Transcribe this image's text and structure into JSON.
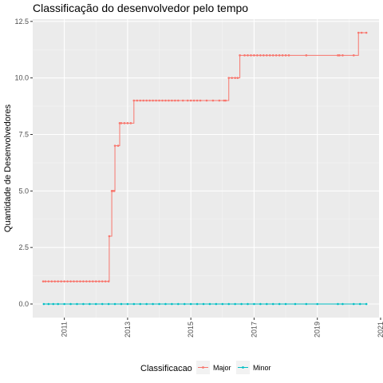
{
  "chart_data": {
    "type": "line",
    "title": "Classificação do desenvolvedor pelo tempo",
    "xlabel": "",
    "ylabel": "Quantidade de Desenvolvedores",
    "x_ticks": [
      "2011",
      "2013",
      "2015",
      "2017",
      "2019",
      "2021"
    ],
    "y_ticks": [
      "0.0",
      "2.5",
      "5.0",
      "7.5",
      "10.0",
      "12.5"
    ],
    "xlim": [
      2010.0,
      2020.95
    ],
    "ylim": [
      -0.6,
      12.6
    ],
    "grid": true,
    "legend": {
      "title": "Classificacao",
      "position": "bottom",
      "entries": [
        "Major",
        "Minor"
      ]
    },
    "colors": {
      "Major": "#F8766D",
      "Minor": "#00BFC4",
      "panel": "#EBEBEB"
    },
    "series": [
      {
        "name": "Major",
        "x": [
          2010.33,
          2010.4,
          2010.5,
          2010.6,
          2010.7,
          2010.8,
          2010.9,
          2011.0,
          2011.1,
          2011.2,
          2011.3,
          2011.4,
          2011.5,
          2011.6,
          2011.7,
          2011.8,
          2011.9,
          2012.0,
          2012.1,
          2012.2,
          2012.3,
          2012.4,
          2012.42,
          2012.5,
          2012.53,
          2012.58,
          2012.6,
          2012.7,
          2012.75,
          2012.8,
          2012.9,
          2013.0,
          2013.1,
          2013.2,
          2013.3,
          2013.4,
          2013.5,
          2013.6,
          2013.7,
          2013.8,
          2013.9,
          2014.0,
          2014.1,
          2014.2,
          2014.3,
          2014.4,
          2014.5,
          2014.6,
          2014.75,
          2014.9,
          2015.0,
          2015.1,
          2015.2,
          2015.3,
          2015.5,
          2015.7,
          2015.9,
          2016.05,
          2016.1,
          2016.2,
          2016.3,
          2016.4,
          2016.48,
          2016.55,
          2016.7,
          2016.8,
          2016.9,
          2017.0,
          2017.1,
          2017.2,
          2017.3,
          2017.4,
          2017.5,
          2017.6,
          2017.7,
          2017.8,
          2017.9,
          2018.0,
          2018.1,
          2018.65,
          2019.65,
          2019.7,
          2019.8,
          2020.15,
          2020.3,
          2020.4,
          2020.55
        ],
        "y": [
          1,
          1,
          1,
          1,
          1,
          1,
          1,
          1,
          1,
          1,
          1,
          1,
          1,
          1,
          1,
          1,
          1,
          1,
          1,
          1,
          1,
          1,
          3,
          5,
          5,
          5,
          7,
          7,
          8,
          8,
          8,
          8,
          8,
          9,
          9,
          9,
          9,
          9,
          9,
          9,
          9,
          9,
          9,
          9,
          9,
          9,
          9,
          9,
          9,
          9,
          9,
          9,
          9,
          9,
          9,
          9,
          9,
          9,
          9,
          10,
          10,
          10,
          10,
          11,
          11,
          11,
          11,
          11,
          11,
          11,
          11,
          11,
          11,
          11,
          11,
          11,
          11,
          11,
          11,
          11,
          11,
          11,
          11,
          11,
          12,
          12,
          12
        ]
      },
      {
        "name": "Minor",
        "x": [
          2010.35,
          2010.5,
          2010.65,
          2010.8,
          2011.0,
          2011.2,
          2011.4,
          2011.6,
          2011.8,
          2012.0,
          2012.2,
          2012.4,
          2012.6,
          2012.8,
          2013.0,
          2013.2,
          2013.4,
          2013.6,
          2013.8,
          2014.0,
          2014.2,
          2014.4,
          2014.6,
          2014.8,
          2015.0,
          2015.2,
          2015.4,
          2015.6,
          2015.8,
          2016.0,
          2016.2,
          2016.4,
          2016.6,
          2016.8,
          2017.0,
          2017.2,
          2017.4,
          2017.6,
          2017.8,
          2018.0,
          2018.3,
          2018.65,
          2019.0,
          2019.65,
          2019.8,
          2020.15,
          2020.35,
          2020.55
        ],
        "y": [
          0,
          0,
          0,
          0,
          0,
          0,
          0,
          0,
          0,
          0,
          0,
          0,
          0,
          0,
          0,
          0,
          0,
          0,
          0,
          0,
          0,
          0,
          0,
          0,
          0,
          0,
          0,
          0,
          0,
          0,
          0,
          0,
          0,
          0,
          0,
          0,
          0,
          0,
          0,
          0,
          0,
          0,
          0,
          0,
          0,
          0,
          0,
          0
        ]
      }
    ]
  }
}
